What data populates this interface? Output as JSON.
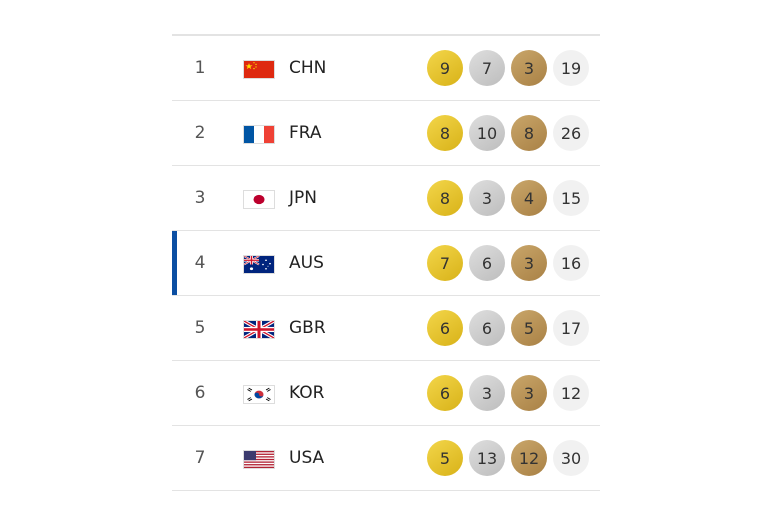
{
  "medal_table": {
    "rows": [
      {
        "rank": "1",
        "code": "CHN",
        "gold": "9",
        "silver": "7",
        "bronze": "3",
        "total": "19"
      },
      {
        "rank": "2",
        "code": "FRA",
        "gold": "8",
        "silver": "10",
        "bronze": "8",
        "total": "26"
      },
      {
        "rank": "3",
        "code": "JPN",
        "gold": "8",
        "silver": "3",
        "bronze": "4",
        "total": "15"
      },
      {
        "rank": "4",
        "code": "AUS",
        "gold": "7",
        "silver": "6",
        "bronze": "3",
        "total": "16"
      },
      {
        "rank": "5",
        "code": "GBR",
        "gold": "6",
        "silver": "6",
        "bronze": "5",
        "total": "17"
      },
      {
        "rank": "6",
        "code": "KOR",
        "gold": "6",
        "silver": "3",
        "bronze": "3",
        "total": "12"
      },
      {
        "rank": "7",
        "code": "USA",
        "gold": "5",
        "silver": "13",
        "bronze": "12",
        "total": "30"
      }
    ]
  },
  "colors": {
    "highlight_bar": "#0b4ea2",
    "gold": "#e5c32b",
    "silver": "#cdcdcd",
    "bronze": "#b8914f",
    "total": "#f1f1f1"
  },
  "icons": {
    "flags": [
      "china-flag-icon",
      "france-flag-icon",
      "japan-flag-icon",
      "australia-flag-icon",
      "uk-flag-icon",
      "korea-flag-icon",
      "usa-flag-icon"
    ]
  }
}
